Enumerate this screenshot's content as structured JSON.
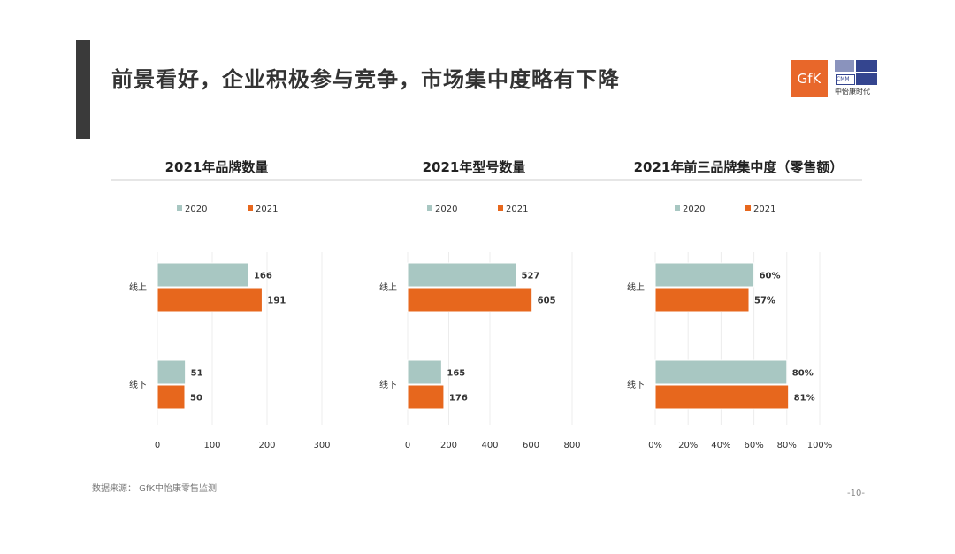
{
  "title": "前景看好，企业积极参与竞争，市场集中度略有下降",
  "logos": {
    "gfk": "GfK",
    "cmm": "CMM",
    "cmm_cn": "中怡康时代"
  },
  "source": "数据来源： GfK中怡康零售监测",
  "page": "-10-",
  "colors": {
    "2020": "#a8c7c2",
    "2021": "#e7671d"
  },
  "chart_data": [
    {
      "type": "bar",
      "orientation": "horizontal",
      "title": "2021年品牌数量",
      "categories": [
        "线上",
        "线下"
      ],
      "series": [
        {
          "name": "2020",
          "values": [
            166,
            51
          ]
        },
        {
          "name": "2021",
          "values": [
            191,
            50
          ]
        }
      ],
      "xlim": [
        0,
        300
      ],
      "ticks": [
        0,
        100,
        200,
        300
      ],
      "tick_labels": [
        "0",
        "100",
        "200",
        "300"
      ],
      "labels": [
        [
          "166",
          "51"
        ],
        [
          "191",
          "50"
        ]
      ]
    },
    {
      "type": "bar",
      "orientation": "horizontal",
      "title": "2021年型号数量",
      "categories": [
        "线上",
        "线下"
      ],
      "series": [
        {
          "name": "2020",
          "values": [
            527,
            165
          ]
        },
        {
          "name": "2021",
          "values": [
            605,
            176
          ]
        }
      ],
      "xlim": [
        0,
        800
      ],
      "ticks": [
        0,
        200,
        400,
        600,
        800
      ],
      "tick_labels": [
        "0",
        "200",
        "400",
        "600",
        "800"
      ],
      "labels": [
        [
          "527",
          "165"
        ],
        [
          "605",
          "176"
        ]
      ]
    },
    {
      "type": "bar",
      "orientation": "horizontal",
      "title": "2021年前三品牌集中度（零售额）",
      "categories": [
        "线上",
        "线下"
      ],
      "series": [
        {
          "name": "2020",
          "values": [
            60,
            80
          ]
        },
        {
          "name": "2021",
          "values": [
            57,
            81
          ]
        }
      ],
      "xlim": [
        0,
        100
      ],
      "ticks": [
        0,
        20,
        40,
        60,
        80,
        100
      ],
      "tick_labels": [
        "0%",
        "20%",
        "40%",
        "60%",
        "80%",
        "100%"
      ],
      "labels": [
        [
          "60%",
          "80%"
        ],
        [
          "57%",
          "81%"
        ]
      ]
    }
  ]
}
